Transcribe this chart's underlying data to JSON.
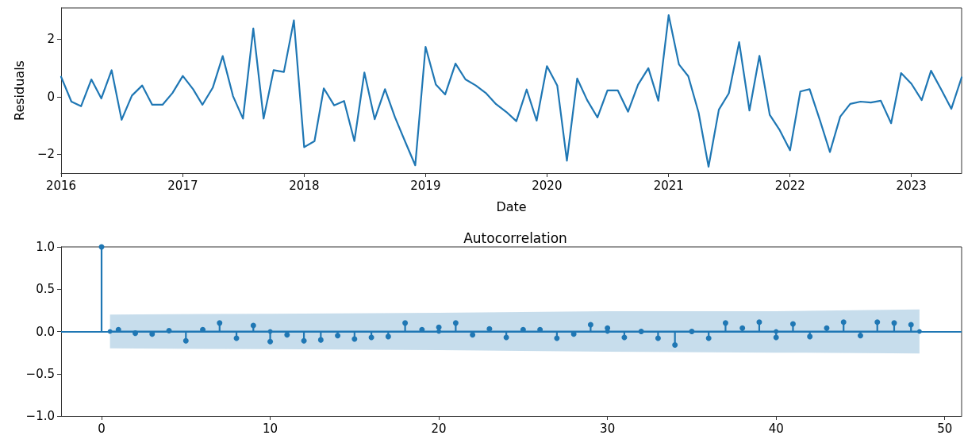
{
  "chart_data": [
    {
      "type": "line",
      "xlabel": "Date",
      "ylabel": "Residuals",
      "grid": false,
      "marker": "none",
      "line_style": "solid",
      "xlim": [
        "2016-01",
        "2023-06"
      ],
      "xticks": [
        "2016",
        "2017",
        "2018",
        "2019",
        "2020",
        "2021",
        "2022",
        "2023"
      ],
      "ylim": [
        -2.65,
        3.08
      ],
      "yticks": [
        {
          "value": -2,
          "label": "−2"
        },
        0,
        2
      ],
      "series": [
        {
          "color": "#1f77b4",
          "x": [
            "2016-01",
            "2016-02",
            "2016-03",
            "2016-04",
            "2016-05",
            "2016-06",
            "2016-07",
            "2016-08",
            "2016-09",
            "2016-10",
            "2016-11",
            "2016-12",
            "2017-01",
            "2017-02",
            "2017-03",
            "2017-04",
            "2017-05",
            "2017-06",
            "2017-07",
            "2017-08",
            "2017-09",
            "2017-10",
            "2017-11",
            "2017-12",
            "2018-01",
            "2018-02",
            "2018-03",
            "2018-04",
            "2018-05",
            "2018-06",
            "2018-07",
            "2018-08",
            "2018-09",
            "2018-10",
            "2018-11",
            "2018-12",
            "2019-01",
            "2019-02",
            "2019-03",
            "2019-04",
            "2019-05",
            "2019-06",
            "2019-07",
            "2019-08",
            "2019-09",
            "2019-10",
            "2019-11",
            "2019-12",
            "2020-01",
            "2020-02",
            "2020-03",
            "2020-04",
            "2020-05",
            "2020-06",
            "2020-07",
            "2020-08",
            "2020-09",
            "2020-10",
            "2020-11",
            "2020-12",
            "2021-01",
            "2021-02",
            "2021-03",
            "2021-04",
            "2021-05",
            "2021-06",
            "2021-07",
            "2021-08",
            "2021-09",
            "2021-10",
            "2021-11",
            "2021-12",
            "2022-01",
            "2022-02",
            "2022-03",
            "2022-04",
            "2022-05",
            "2022-06",
            "2022-07",
            "2022-08",
            "2022-09",
            "2022-10",
            "2022-11",
            "2022-12",
            "2023-01",
            "2023-02",
            "2023-03",
            "2023-04",
            "2023-05",
            "2023-06"
          ],
          "values": [
            0.69,
            -0.17,
            -0.33,
            0.6,
            -0.06,
            0.92,
            -0.8,
            0.04,
            0.39,
            -0.28,
            -0.28,
            0.13,
            0.72,
            0.26,
            -0.28,
            0.31,
            1.41,
            0.02,
            -0.76,
            2.37,
            -0.76,
            0.92,
            0.86,
            2.65,
            -1.75,
            -1.54,
            0.29,
            -0.3,
            -0.15,
            -1.54,
            0.84,
            -0.78,
            0.26,
            -0.71,
            -1.57,
            -2.38,
            1.73,
            0.42,
            0.08,
            1.15,
            0.6,
            0.39,
            0.13,
            -0.26,
            -0.53,
            -0.85,
            0.25,
            -0.83,
            1.06,
            0.39,
            -2.22,
            0.63,
            -0.12,
            -0.72,
            0.22,
            0.22,
            -0.52,
            0.42,
            0.99,
            -0.14,
            2.83,
            1.12,
            0.71,
            -0.55,
            -2.43,
            -0.45,
            0.12,
            1.89,
            -0.48,
            1.42,
            -0.63,
            -1.16,
            -1.86,
            0.18,
            0.26,
            -0.82,
            -1.92,
            -0.69,
            -0.25,
            -0.17,
            -0.2,
            -0.14,
            -0.92,
            0.82,
            0.45,
            -0.12,
            0.9,
            0.24,
            -0.42,
            0.67
          ]
        }
      ]
    },
    {
      "type": "lollipop",
      "title": "Autocorrelation",
      "grid": false,
      "marker": "circle",
      "xlim": [
        -2.4,
        51
      ],
      "xticks": [
        0,
        10,
        20,
        30,
        40,
        50
      ],
      "ylim": [
        -1,
        1
      ],
      "yticks": [
        {
          "value": -1,
          "label": "−1.0"
        },
        {
          "value": -0.5,
          "label": "−0.5"
        },
        {
          "value": 0,
          "label": "0.0"
        },
        {
          "value": 0.5,
          "label": "0.5"
        },
        {
          "value": 1,
          "label": "1.0"
        }
      ],
      "ref_lines": [
        {
          "axis": "y",
          "value": 0,
          "color": "#1f77b4"
        }
      ],
      "series": [
        {
          "color": "#1f77b4",
          "x": [
            0,
            1,
            2,
            3,
            4,
            5,
            6,
            7,
            8,
            9,
            10,
            11,
            12,
            13,
            14,
            15,
            16,
            17,
            18,
            19,
            20,
            21,
            22,
            23,
            24,
            25,
            26,
            27,
            28,
            29,
            30,
            31,
            32,
            33,
            34,
            35,
            36,
            37,
            38,
            39,
            40,
            41,
            42,
            43,
            44,
            45,
            46,
            47,
            48
          ],
          "values": [
            1,
            0.02,
            -0.02,
            -0.03,
            0.01,
            -0.11,
            0.02,
            0.1,
            -0.08,
            0.07,
            -0.12,
            -0.04,
            -0.11,
            -0.1,
            -0.05,
            -0.09,
            -0.07,
            -0.06,
            0.1,
            0.02,
            0.05,
            0.1,
            -0.04,
            0.03,
            -0.07,
            0.02,
            0.02,
            -0.08,
            -0.03,
            0.08,
            0.04,
            -0.07,
            0,
            -0.08,
            -0.16,
            0,
            -0.08,
            0.1,
            0.04,
            0.11,
            -0.07,
            0.09,
            -0.06,
            0.04,
            0.11,
            -0.05,
            0.11,
            0.1,
            0.08
          ]
        },
        {
          "type": "line",
          "color": "#1f77b4",
          "x": [
            0.5,
            10,
            20,
            30,
            40,
            48.5
          ],
          "values": [
            0,
            0,
            0,
            0,
            0,
            0
          ],
          "lower": [
            -0.2,
            -0.21,
            -0.22,
            -0.24,
            -0.25,
            -0.26
          ],
          "upper": [
            0.2,
            0.21,
            0.22,
            0.24,
            0.24,
            0.26
          ]
        }
      ]
    }
  ]
}
